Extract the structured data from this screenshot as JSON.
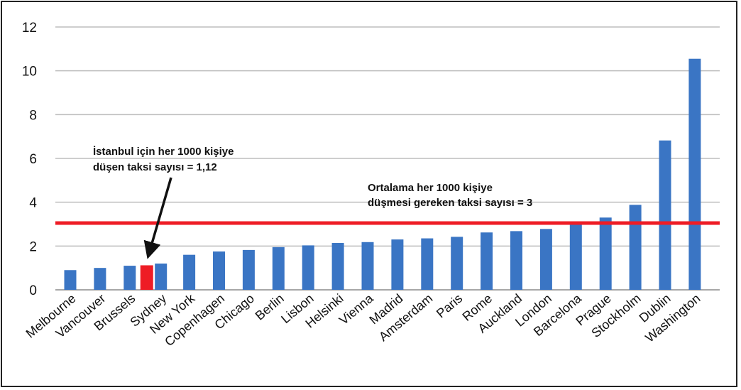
{
  "chart_data": {
    "type": "bar",
    "categories": [
      "Melbourne",
      "Vancouver",
      "Brussels",
      "İstanbul",
      "Sydney",
      "New York",
      "Copenhagen",
      "Chicago",
      "Berlin",
      "Lisbon",
      "Helsinki",
      "Vienna",
      "Madrid",
      "Amsterdam",
      "Paris",
      "Rome",
      "Auckland",
      "London",
      "Barcelona",
      "Prague",
      "Stockholm",
      "Dublin",
      "Washington"
    ],
    "category_labels": [
      "Melbourne",
      "Vancouver",
      "Brussels",
      "",
      "Sydney",
      "New York",
      "Copenhagen",
      "Chicago",
      "Berlin",
      "Lisbon",
      "Helsinki",
      "Vienna",
      "Madrid",
      "Amsterdam",
      "Paris",
      "Rome",
      "Auckland",
      "London",
      "Barcelona",
      "Prague",
      "Stockholm",
      "Dublin",
      "Washington"
    ],
    "values": [
      0.9,
      1.0,
      1.1,
      1.12,
      1.2,
      1.6,
      1.75,
      1.82,
      1.95,
      2.03,
      2.14,
      2.18,
      2.3,
      2.35,
      2.42,
      2.62,
      2.68,
      2.78,
      3.0,
      3.3,
      3.88,
      6.82,
      10.55
    ],
    "bar_colors": [
      "#3a75c4",
      "#3a75c4",
      "#3a75c4",
      "#ee1c25",
      "#3a75c4",
      "#3a75c4",
      "#3a75c4",
      "#3a75c4",
      "#3a75c4",
      "#3a75c4",
      "#3a75c4",
      "#3a75c4",
      "#3a75c4",
      "#3a75c4",
      "#3a75c4",
      "#3a75c4",
      "#3a75c4",
      "#3a75c4",
      "#3a75c4",
      "#3a75c4",
      "#3a75c4",
      "#3a75c4",
      "#3a75c4"
    ],
    "ylim": [
      0,
      12
    ],
    "yticks": [
      0,
      2,
      4,
      6,
      8,
      10,
      12
    ],
    "grid": true,
    "reference_line": {
      "value": 3.05,
      "color": "#ee1c25"
    },
    "annotations": {
      "istanbul": [
        "İstanbul için her 1000 kişiye",
        "düşen taksi sayısı = 1,12"
      ],
      "average": [
        "Ortalama her 1000 kişiye",
        "düşmesi gereken taksi sayısı = 3"
      ]
    }
  },
  "colors": {
    "bar": "#3a75c4",
    "highlight": "#ee1c25",
    "grid": "#bdbdbd",
    "axis": "#8a8a8a"
  }
}
